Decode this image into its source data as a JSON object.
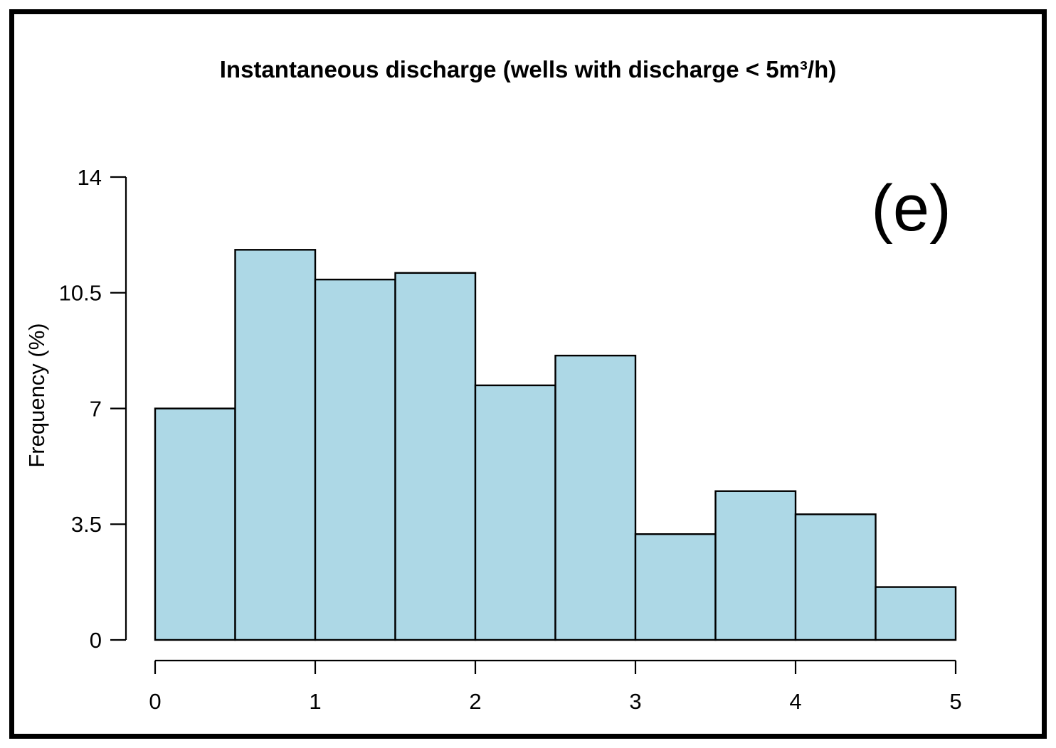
{
  "page": {
    "background_color": "#ffffff",
    "frame_border_color": "#000000"
  },
  "figure": {
    "title": "Instantaneous discharge (wells with discharge < 5m³/h)",
    "panel_label": "(e)",
    "y_axis_title": "Frequency (%)"
  },
  "chart_data": {
    "type": "bar",
    "subtype": "histogram",
    "title": "Instantaneous discharge (wells with discharge < 5m³/h)",
    "xlabel": "",
    "ylabel": "Frequency (%)",
    "annotation": "(e)",
    "bin_edges": [
      0,
      0.5,
      1,
      1.5,
      2,
      2.5,
      3,
      3.5,
      4,
      4.5,
      5
    ],
    "values": [
      7.0,
      11.8,
      10.9,
      11.1,
      7.7,
      8.6,
      3.2,
      4.5,
      3.8,
      1.6
    ],
    "x_ticks": [
      "0",
      "1",
      "2",
      "3",
      "4",
      "5"
    ],
    "x_tick_values": [
      0,
      1,
      2,
      3,
      4,
      5
    ],
    "y_ticks": [
      "0",
      "3.5",
      "7",
      "10.5",
      "14"
    ],
    "y_tick_values": [
      0,
      3.5,
      7,
      10.5,
      14
    ],
    "xlim": [
      0,
      5
    ],
    "ylim": [
      0,
      14
    ],
    "grid": false,
    "legend": false,
    "bar_fill_color": "#ADD8E6",
    "bar_border_color": "#000000",
    "axis_color": "#000000"
  }
}
